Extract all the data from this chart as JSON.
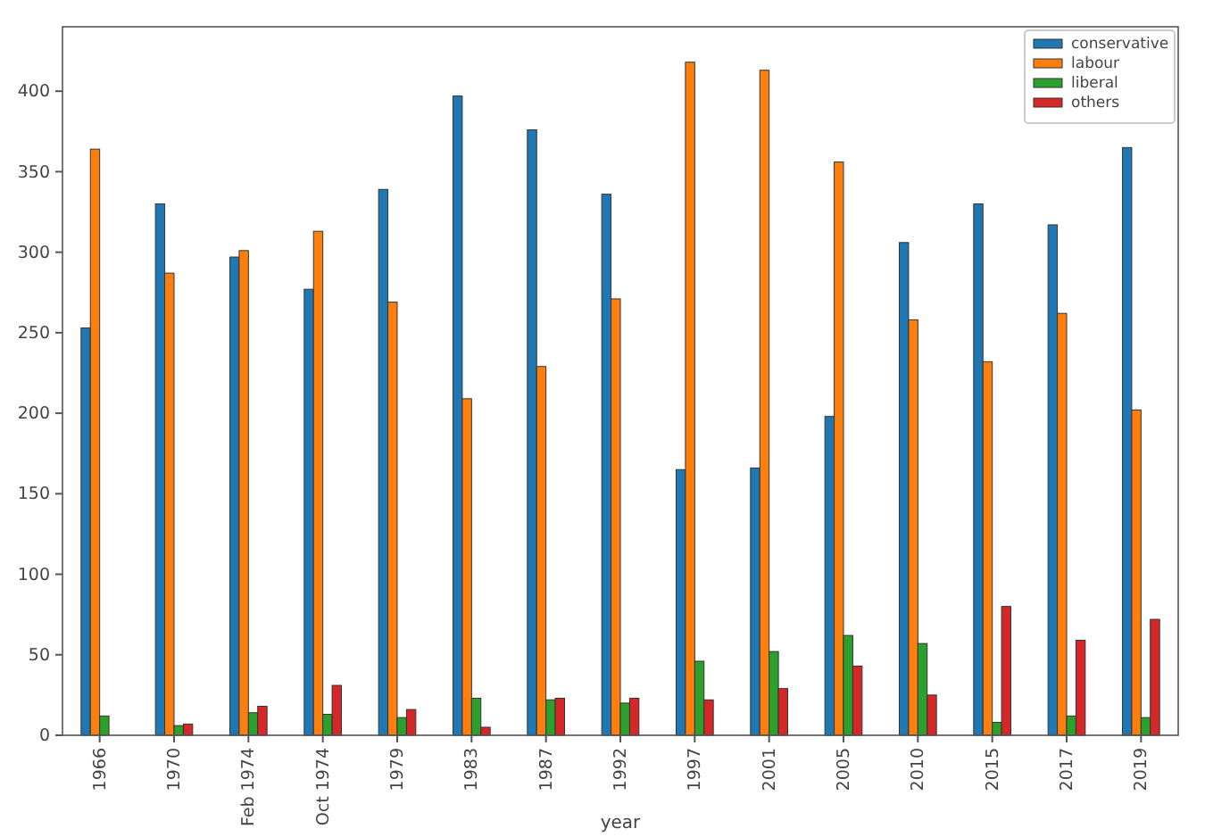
{
  "chart_data": {
    "type": "bar",
    "xlabel": "year",
    "categories": [
      "1966",
      "1970",
      "Feb 1974",
      "Oct 1974",
      "1979",
      "1983",
      "1987",
      "1992",
      "1997",
      "2001",
      "2005",
      "2010",
      "2015",
      "2017",
      "2019"
    ],
    "series": [
      {
        "name": "conservative",
        "color": "#1f77b4",
        "values": [
          253,
          330,
          297,
          277,
          339,
          397,
          376,
          336,
          165,
          166,
          198,
          306,
          330,
          317,
          365
        ]
      },
      {
        "name": "labour",
        "color": "#ff7f0e",
        "values": [
          364,
          287,
          301,
          313,
          269,
          209,
          229,
          271,
          418,
          413,
          356,
          258,
          232,
          262,
          202
        ]
      },
      {
        "name": "liberal",
        "color": "#2ca02c",
        "values": [
          12,
          6,
          14,
          13,
          11,
          23,
          22,
          20,
          46,
          52,
          62,
          57,
          8,
          12,
          11
        ]
      },
      {
        "name": "others",
        "color": "#d62728",
        "values": [
          null,
          7,
          18,
          31,
          16,
          5,
          23,
          23,
          22,
          29,
          43,
          25,
          80,
          59,
          72
        ]
      }
    ],
    "ylim": [
      0,
      440
    ],
    "yticks": [
      0,
      50,
      100,
      150,
      200,
      250,
      300,
      350,
      400
    ],
    "legend": "top right"
  }
}
